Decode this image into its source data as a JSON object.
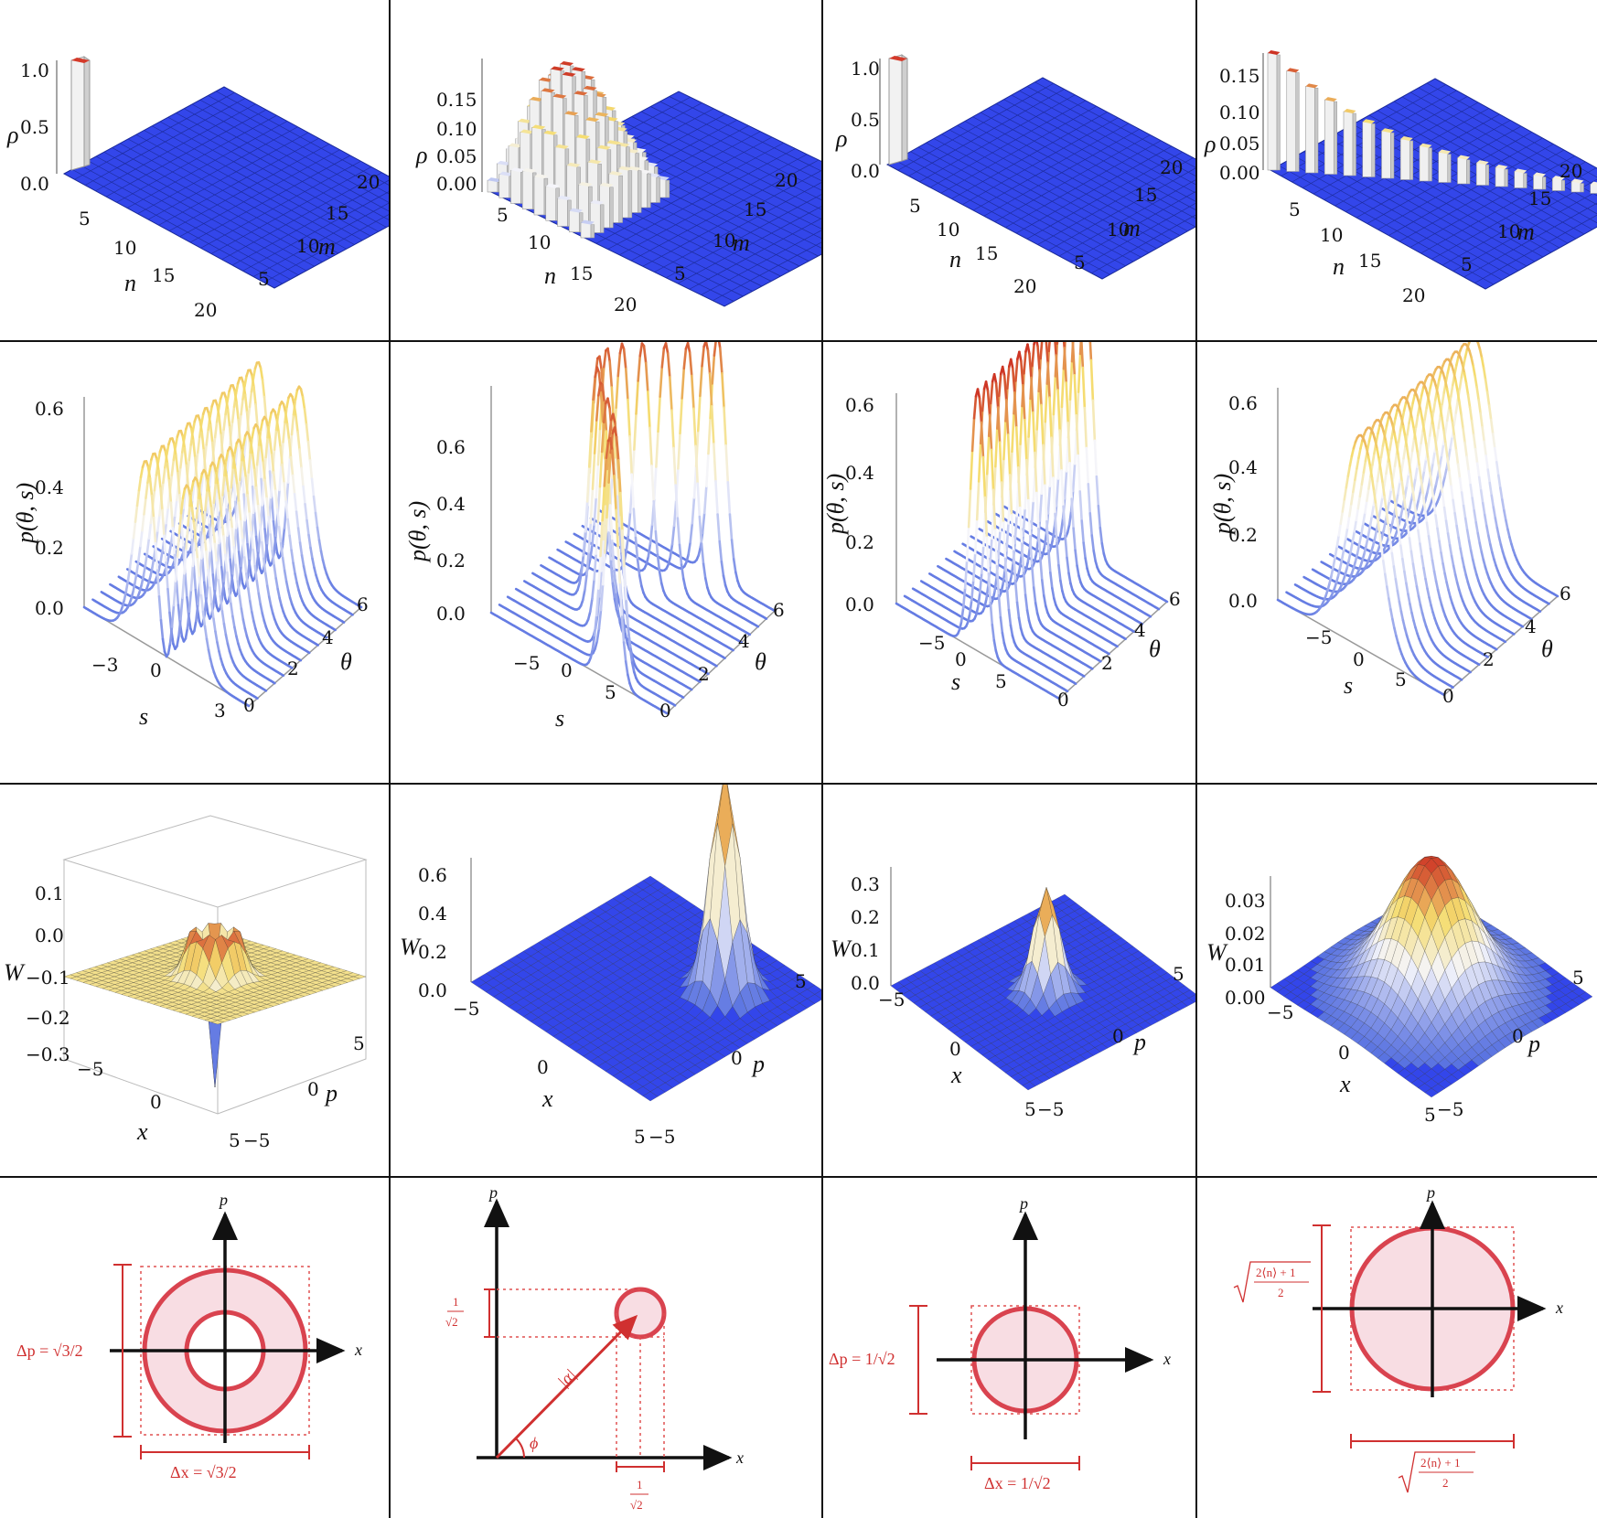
{
  "colors": {
    "surface_blue": "#3346ea",
    "bar_white": "#f2f2f2",
    "peak_red": "#d43a2a",
    "accent_red": "#d9434f",
    "ring_fill": "#f8dde3",
    "yellow_plane": "#f3e08c"
  },
  "row1": [
    {
      "zlabel": "ρ",
      "zticks": [
        "1.0",
        "0.5",
        "0.0"
      ],
      "xlabel": "n",
      "ylabel": "m",
      "nticks": [
        "5",
        "10",
        "15",
        "20"
      ],
      "mticks": [
        "5",
        "10",
        "15",
        "20"
      ]
    },
    {
      "zlabel": "ρ",
      "zticks": [
        "0.15",
        "0.10",
        "0.05",
        "0.00"
      ],
      "xlabel": "n",
      "ylabel": "m",
      "nticks": [
        "5",
        "10",
        "15",
        "20"
      ],
      "mticks": [
        "5",
        "10",
        "15",
        "20"
      ]
    },
    {
      "zlabel": "ρ",
      "zticks": [
        "1.0",
        "0.5",
        "0.0"
      ],
      "xlabel": "n",
      "ylabel": "m",
      "nticks": [
        "5",
        "10",
        "15",
        "20"
      ],
      "mticks": [
        "5",
        "10",
        "15",
        "20"
      ]
    },
    {
      "zlabel": "ρ",
      "zticks": [
        "0.15",
        "0.10",
        "0.05",
        "0.00"
      ],
      "xlabel": "n",
      "ylabel": "m",
      "nticks": [
        "5",
        "10",
        "15",
        "20"
      ],
      "mticks": [
        "5",
        "10",
        "15",
        "20"
      ]
    }
  ],
  "row2": [
    {
      "zlabel": "p(θ, s)",
      "zticks": [
        "0.6",
        "0.4",
        "0.2",
        "0.0"
      ],
      "xlabel": "s",
      "ylabel": "θ",
      "sticks": [
        "−3",
        "0",
        "3"
      ],
      "thticks": [
        "0",
        "2",
        "4",
        "6"
      ]
    },
    {
      "zlabel": "p(θ, s)",
      "zticks": [
        "0.6",
        "0.4",
        "0.2",
        "0.0"
      ],
      "xlabel": "s",
      "ylabel": "θ",
      "sticks": [
        "−5",
        "0",
        "5"
      ],
      "thticks": [
        "0",
        "2",
        "4",
        "6"
      ]
    },
    {
      "zlabel": "p(θ, s)",
      "zticks": [
        "0.6",
        "0.4",
        "0.2",
        "0.0"
      ],
      "xlabel": "s",
      "ylabel": "θ",
      "sticks": [
        "−5",
        "0",
        "5"
      ],
      "thticks": [
        "0",
        "2",
        "4",
        "6"
      ]
    },
    {
      "zlabel": "p(θ, s)",
      "zticks": [
        "0.6",
        "0.4",
        "0.2",
        "0.0"
      ],
      "xlabel": "s",
      "ylabel": "θ",
      "sticks": [
        "−5",
        "0",
        "5"
      ],
      "thticks": [
        "0",
        "2",
        "4",
        "6"
      ]
    }
  ],
  "row3": [
    {
      "zlabel": "W",
      "zticks": [
        "0.1",
        "0.0",
        "−0.1",
        "−0.2",
        "−0.3"
      ],
      "xlabel": "x",
      "ylabel": "p",
      "xticks": [
        "−5",
        "0",
        "5"
      ],
      "pticks": [
        "−5",
        "0",
        "5"
      ]
    },
    {
      "zlabel": "W",
      "zticks": [
        "0.6",
        "0.4",
        "0.2",
        "0.0"
      ],
      "xlabel": "x",
      "ylabel": "p",
      "xticks": [
        "−5",
        "0",
        "5"
      ],
      "pticks": [
        "−5",
        "0",
        "5"
      ]
    },
    {
      "zlabel": "W",
      "zticks": [
        "0.3",
        "0.2",
        "0.1",
        "0.0"
      ],
      "xlabel": "x",
      "ylabel": "p",
      "xticks": [
        "−5",
        "0",
        "5"
      ],
      "pticks": [
        "−5",
        "0",
        "5"
      ]
    },
    {
      "zlabel": "W",
      "zticks": [
        "0.03",
        "0.02",
        "0.01",
        "0.00"
      ],
      "xlabel": "x",
      "ylabel": "p",
      "xticks": [
        "−5",
        "0",
        "5"
      ],
      "pticks": [
        "−5",
        "0",
        "5"
      ]
    }
  ],
  "row4": [
    {
      "xaxis": "x",
      "paxis": "p",
      "dp": "Δp = √3/2",
      "dx": "Δx = √3/2"
    },
    {
      "xaxis": "x",
      "paxis": "p",
      "alpha": "|α|",
      "phi": "ϕ",
      "frac_num": "1",
      "frac_den": "√2"
    },
    {
      "xaxis": "x",
      "paxis": "p",
      "dp": "Δp = 1/√2",
      "dx": "Δx = 1/√2"
    },
    {
      "xaxis": "x",
      "paxis": "p",
      "frac_num": "2⟨n⟩ + 1",
      "frac_den": "2"
    }
  ]
}
